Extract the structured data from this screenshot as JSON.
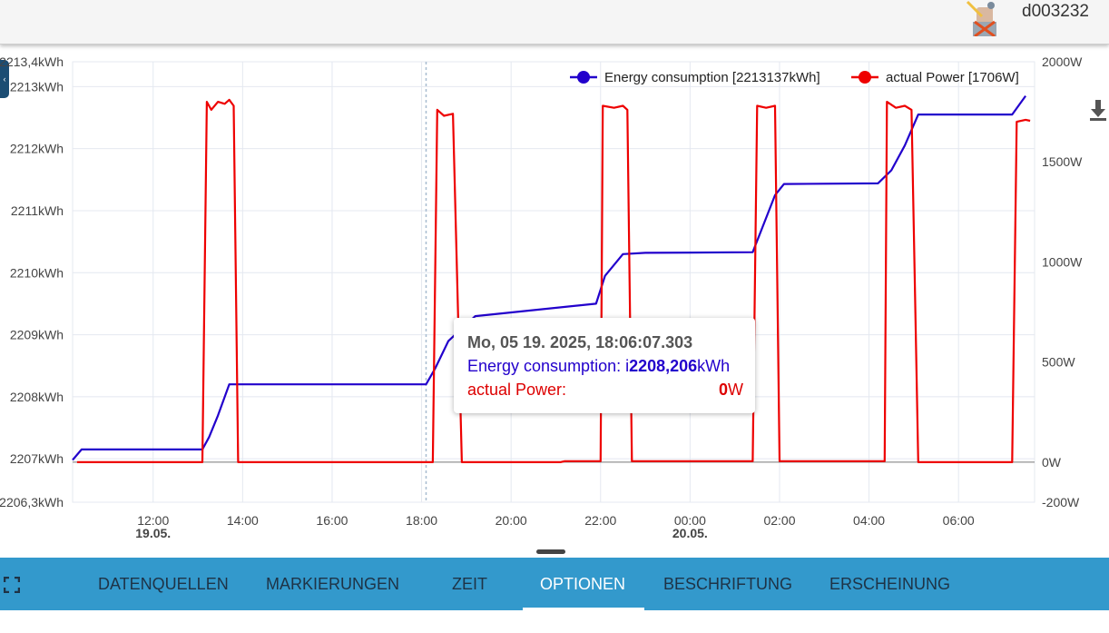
{
  "header": {
    "username": "d003232",
    "avatar_icon": "user-avatar-icon",
    "download_icon": "download-icon"
  },
  "colors": {
    "energy": "#2200cc",
    "power": "#ee0000",
    "bottombar": "#3399cc",
    "grid": "#e4e8f0"
  },
  "tooltip": {
    "title": "Mo, 05 19. 2025, 18:06:07.303",
    "energy_label": "Energy consumption: ",
    "energy_prefix": "i",
    "energy_value": "2208,206",
    "energy_unit": "kWh",
    "power_label": "actual Power:",
    "power_value": "0",
    "power_unit": "W"
  },
  "tabs": [
    {
      "label": "DATENQUELLEN",
      "active": false
    },
    {
      "label": "MARKIERUNGEN",
      "active": false
    },
    {
      "label": "ZEIT",
      "active": false
    },
    {
      "label": "OPTIONEN",
      "active": true
    },
    {
      "label": "BESCHRIFTUNG",
      "active": false
    },
    {
      "label": "ERSCHEINUNG",
      "active": false
    }
  ],
  "chart_data": {
    "type": "line",
    "x_unit": "hours since 19.05. 00:00",
    "xlim": [
      10.2,
      31.7
    ],
    "x_ticks": [
      {
        "value": 12,
        "label": "12:00",
        "date": "19.05."
      },
      {
        "value": 14,
        "label": "14:00"
      },
      {
        "value": 16,
        "label": "16:00"
      },
      {
        "value": 18,
        "label": "18:00"
      },
      {
        "value": 20,
        "label": "20:00"
      },
      {
        "value": 22,
        "label": "22:00"
      },
      {
        "value": 24,
        "label": "00:00",
        "date": "20.05."
      },
      {
        "value": 26,
        "label": "02:00"
      },
      {
        "value": 28,
        "label": "04:00"
      },
      {
        "value": 30,
        "label": "06:00"
      }
    ],
    "y_left": {
      "ylim": [
        2206.3,
        2213.4
      ],
      "ticks": [
        {
          "value": 2213.4,
          "label": "2213,4kWh"
        },
        {
          "value": 2213,
          "label": "2213kWh"
        },
        {
          "value": 2212,
          "label": "2212kWh"
        },
        {
          "value": 2211,
          "label": "2211kWh"
        },
        {
          "value": 2210,
          "label": "2210kWh"
        },
        {
          "value": 2209,
          "label": "2209kWh"
        },
        {
          "value": 2208,
          "label": "2208kWh"
        },
        {
          "value": 2207,
          "label": "2207kWh"
        },
        {
          "value": 2206.3,
          "label": "2206,3kWh"
        }
      ]
    },
    "y_right": {
      "ylim": [
        -200,
        2000
      ],
      "ticks": [
        {
          "value": 2000,
          "label": "2000W"
        },
        {
          "value": 1500,
          "label": "1500W"
        },
        {
          "value": 1000,
          "label": "1000W"
        },
        {
          "value": 500,
          "label": "500W"
        },
        {
          "value": 0,
          "label": "0W"
        },
        {
          "value": -200,
          "label": "-200W"
        }
      ]
    },
    "cursor_x": 18.1,
    "legend_position": "top-right",
    "series": [
      {
        "name": "Energy consumption [2213137kWh]",
        "axis": "left",
        "color": "#2200cc",
        "points": [
          [
            10.2,
            2206.98
          ],
          [
            10.4,
            2207.15
          ],
          [
            13.1,
            2207.15
          ],
          [
            13.25,
            2207.35
          ],
          [
            13.45,
            2207.7
          ],
          [
            13.7,
            2208.2
          ],
          [
            18.1,
            2208.2
          ],
          [
            18.3,
            2208.45
          ],
          [
            18.6,
            2208.9
          ],
          [
            19.2,
            2209.3
          ],
          [
            21.9,
            2209.5
          ],
          [
            22.1,
            2209.95
          ],
          [
            22.5,
            2210.3
          ],
          [
            23.0,
            2210.32
          ],
          [
            25.4,
            2210.33
          ],
          [
            25.9,
            2211.25
          ],
          [
            26.1,
            2211.43
          ],
          [
            28.2,
            2211.44
          ],
          [
            28.5,
            2211.65
          ],
          [
            28.8,
            2212.05
          ],
          [
            29.1,
            2212.55
          ],
          [
            31.2,
            2212.55
          ],
          [
            31.5,
            2212.85
          ]
        ]
      },
      {
        "name": "actual Power [1706W]",
        "axis": "right",
        "color": "#ee0000",
        "points": [
          [
            10.3,
            0
          ],
          [
            13.1,
            0
          ],
          [
            13.2,
            1800
          ],
          [
            13.3,
            1760
          ],
          [
            13.45,
            1800
          ],
          [
            13.6,
            1790
          ],
          [
            13.7,
            1810
          ],
          [
            13.8,
            1780
          ],
          [
            13.9,
            0
          ],
          [
            18.25,
            0
          ],
          [
            18.35,
            1760
          ],
          [
            18.5,
            1730
          ],
          [
            18.7,
            1740
          ],
          [
            18.9,
            0
          ],
          [
            21.1,
            0
          ],
          [
            21.2,
            5
          ],
          [
            22.0,
            5
          ],
          [
            22.05,
            1780
          ],
          [
            22.3,
            1770
          ],
          [
            22.5,
            1780
          ],
          [
            22.6,
            1760
          ],
          [
            22.7,
            5
          ],
          [
            25.4,
            5
          ],
          [
            25.5,
            1780
          ],
          [
            25.7,
            1770
          ],
          [
            25.9,
            1780
          ],
          [
            26.0,
            5
          ],
          [
            28.35,
            5
          ],
          [
            28.4,
            1800
          ],
          [
            28.6,
            1770
          ],
          [
            28.8,
            1780
          ],
          [
            28.95,
            1760
          ],
          [
            29.1,
            0
          ],
          [
            31.2,
            0
          ],
          [
            31.3,
            1700
          ],
          [
            31.5,
            1710
          ],
          [
            31.6,
            1705
          ]
        ]
      }
    ]
  }
}
